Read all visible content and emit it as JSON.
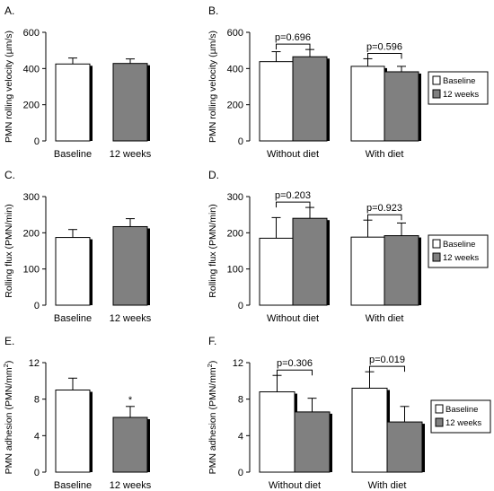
{
  "colors": {
    "baseline": "#ffffff",
    "weeks12": "#808080",
    "shadow": "#000000",
    "axis": "#000000"
  },
  "chart_data": [
    {
      "panel": "A.",
      "type": "bar",
      "grouped": false,
      "ylabel": "PMN rolling velocity (µm/s)",
      "ylim": [
        0,
        600
      ],
      "yticks": [
        0,
        200,
        400,
        600
      ],
      "categories": [
        "Baseline",
        "12 weeks"
      ],
      "values": [
        425,
        428
      ],
      "errors": [
        33,
        25
      ]
    },
    {
      "panel": "B.",
      "type": "bar",
      "grouped": true,
      "ylabel": "PMN rolling velocity (µm/s)",
      "ylim": [
        0,
        600
      ],
      "yticks": [
        0,
        200,
        400,
        600
      ],
      "categories": [
        "Without diet",
        "With diet"
      ],
      "series": [
        {
          "name": "Baseline",
          "values": [
            438,
            412
          ],
          "errors": [
            55,
            42
          ]
        },
        {
          "name": "12 weeks",
          "values": [
            465,
            382
          ],
          "errors": [
            40,
            30
          ]
        }
      ],
      "annotations": [
        "p=0.696",
        "p=0.596"
      ],
      "legend": "right"
    },
    {
      "panel": "C.",
      "type": "bar",
      "grouped": false,
      "ylabel": "Rolling flux (PMN/min)",
      "ylim": [
        0,
        300
      ],
      "yticks": [
        0,
        100,
        200,
        300
      ],
      "categories": [
        "Baseline",
        "12 weeks"
      ],
      "values": [
        187,
        217
      ],
      "errors": [
        22,
        22
      ]
    },
    {
      "panel": "D.",
      "type": "bar",
      "grouped": true,
      "ylabel": "Rolling flux (PMN/min)",
      "ylim": [
        0,
        300
      ],
      "yticks": [
        0,
        100,
        200,
        300
      ],
      "categories": [
        "Without diet",
        "With diet"
      ],
      "series": [
        {
          "name": "Baseline",
          "values": [
            185,
            188
          ],
          "errors": [
            57,
            47
          ]
        },
        {
          "name": "12 weeks",
          "values": [
            240,
            192
          ],
          "errors": [
            30,
            35
          ]
        }
      ],
      "annotations": [
        "p=0.203",
        "p=0.923"
      ],
      "legend": "right"
    },
    {
      "panel": "E.",
      "type": "bar",
      "grouped": false,
      "ylabel": "PMN adhesion (PMN/mm²)",
      "ylim": [
        0,
        12
      ],
      "yticks": [
        0,
        4,
        8,
        12
      ],
      "categories": [
        "Baseline",
        "12 weeks"
      ],
      "values": [
        9.0,
        6.0
      ],
      "errors": [
        1.3,
        1.2
      ],
      "marks": [
        "",
        "*"
      ]
    },
    {
      "panel": "F.",
      "type": "bar",
      "grouped": true,
      "ylabel": "PMN adhesion (PMN/mm²)",
      "ylim": [
        0,
        12
      ],
      "yticks": [
        0,
        4,
        8,
        12
      ],
      "categories": [
        "Without diet",
        "With diet"
      ],
      "series": [
        {
          "name": "Baseline",
          "values": [
            8.8,
            9.2
          ],
          "errors": [
            1.8,
            1.8
          ]
        },
        {
          "name": "12 weeks",
          "values": [
            6.6,
            5.5
          ],
          "errors": [
            1.5,
            1.7
          ]
        }
      ],
      "annotations": [
        "p=0.306",
        "p=0.019"
      ],
      "legend": "right"
    }
  ]
}
